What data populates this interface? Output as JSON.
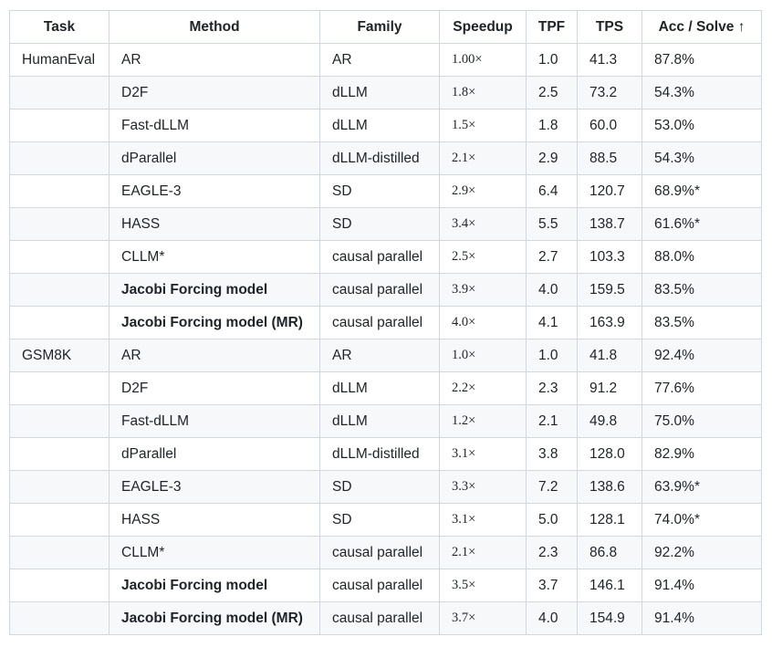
{
  "headers": [
    "Task",
    "Method",
    "Family",
    "Speedup",
    "TPF",
    "TPS",
    "Acc / Solve ↑"
  ],
  "rows": [
    {
      "task": "HumanEval",
      "method": "AR",
      "family": "AR",
      "speedup": "1.00×",
      "tpf": "1.0",
      "tps": "41.3",
      "acc": "87.8%",
      "bold": false
    },
    {
      "task": "",
      "method": "D2F",
      "family": "dLLM",
      "speedup": "1.8×",
      "tpf": "2.5",
      "tps": "73.2",
      "acc": "54.3%",
      "bold": false
    },
    {
      "task": "",
      "method": "Fast-dLLM",
      "family": "dLLM",
      "speedup": "1.5×",
      "tpf": "1.8",
      "tps": "60.0",
      "acc": "53.0%",
      "bold": false
    },
    {
      "task": "",
      "method": "dParallel",
      "family": "dLLM-distilled",
      "speedup": "2.1×",
      "tpf": "2.9",
      "tps": "88.5",
      "acc": "54.3%",
      "bold": false
    },
    {
      "task": "",
      "method": "EAGLE-3",
      "family": "SD",
      "speedup": "2.9×",
      "tpf": "6.4",
      "tps": "120.7",
      "acc": "68.9%*",
      "bold": false
    },
    {
      "task": "",
      "method": "HASS",
      "family": "SD",
      "speedup": "3.4×",
      "tpf": "5.5",
      "tps": "138.7",
      "acc": "61.6%*",
      "bold": false
    },
    {
      "task": "",
      "method": "CLLM*",
      "family": "causal parallel",
      "speedup": "2.5×",
      "tpf": "2.7",
      "tps": "103.3",
      "acc": "88.0%",
      "bold": false
    },
    {
      "task": "",
      "method": "Jacobi Forcing model",
      "family": "causal parallel",
      "speedup": "3.9×",
      "tpf": "4.0",
      "tps": "159.5",
      "acc": "83.5%",
      "bold": true
    },
    {
      "task": "",
      "method": "Jacobi Forcing model (MR)",
      "family": "causal parallel",
      "speedup": "4.0×",
      "tpf": "4.1",
      "tps": "163.9",
      "acc": "83.5%",
      "bold": true
    },
    {
      "task": "GSM8K",
      "method": "AR",
      "family": "AR",
      "speedup": "1.0×",
      "tpf": "1.0",
      "tps": "41.8",
      "acc": "92.4%",
      "bold": false
    },
    {
      "task": "",
      "method": "D2F",
      "family": "dLLM",
      "speedup": "2.2×",
      "tpf": "2.3",
      "tps": "91.2",
      "acc": "77.6%",
      "bold": false
    },
    {
      "task": "",
      "method": "Fast-dLLM",
      "family": "dLLM",
      "speedup": "1.2×",
      "tpf": "2.1",
      "tps": "49.8",
      "acc": "75.0%",
      "bold": false
    },
    {
      "task": "",
      "method": "dParallel",
      "family": "dLLM-distilled",
      "speedup": "3.1×",
      "tpf": "3.8",
      "tps": "128.0",
      "acc": "82.9%",
      "bold": false
    },
    {
      "task": "",
      "method": "EAGLE-3",
      "family": "SD",
      "speedup": "3.3×",
      "tpf": "7.2",
      "tps": "138.6",
      "acc": "63.9%*",
      "bold": false
    },
    {
      "task": "",
      "method": "HASS",
      "family": "SD",
      "speedup": "3.1×",
      "tpf": "5.0",
      "tps": "128.1",
      "acc": "74.0%*",
      "bold": false
    },
    {
      "task": "",
      "method": "CLLM*",
      "family": "causal parallel",
      "speedup": "2.1×",
      "tpf": "2.3",
      "tps": "86.8",
      "acc": "92.2%",
      "bold": false
    },
    {
      "task": "",
      "method": "Jacobi Forcing model",
      "family": "causal parallel",
      "speedup": "3.5×",
      "tpf": "3.7",
      "tps": "146.1",
      "acc": "91.4%",
      "bold": true
    },
    {
      "task": "",
      "method": "Jacobi Forcing model (MR)",
      "family": "causal parallel",
      "speedup": "3.7×",
      "tpf": "4.0",
      "tps": "154.9",
      "acc": "91.4%",
      "bold": true
    }
  ]
}
